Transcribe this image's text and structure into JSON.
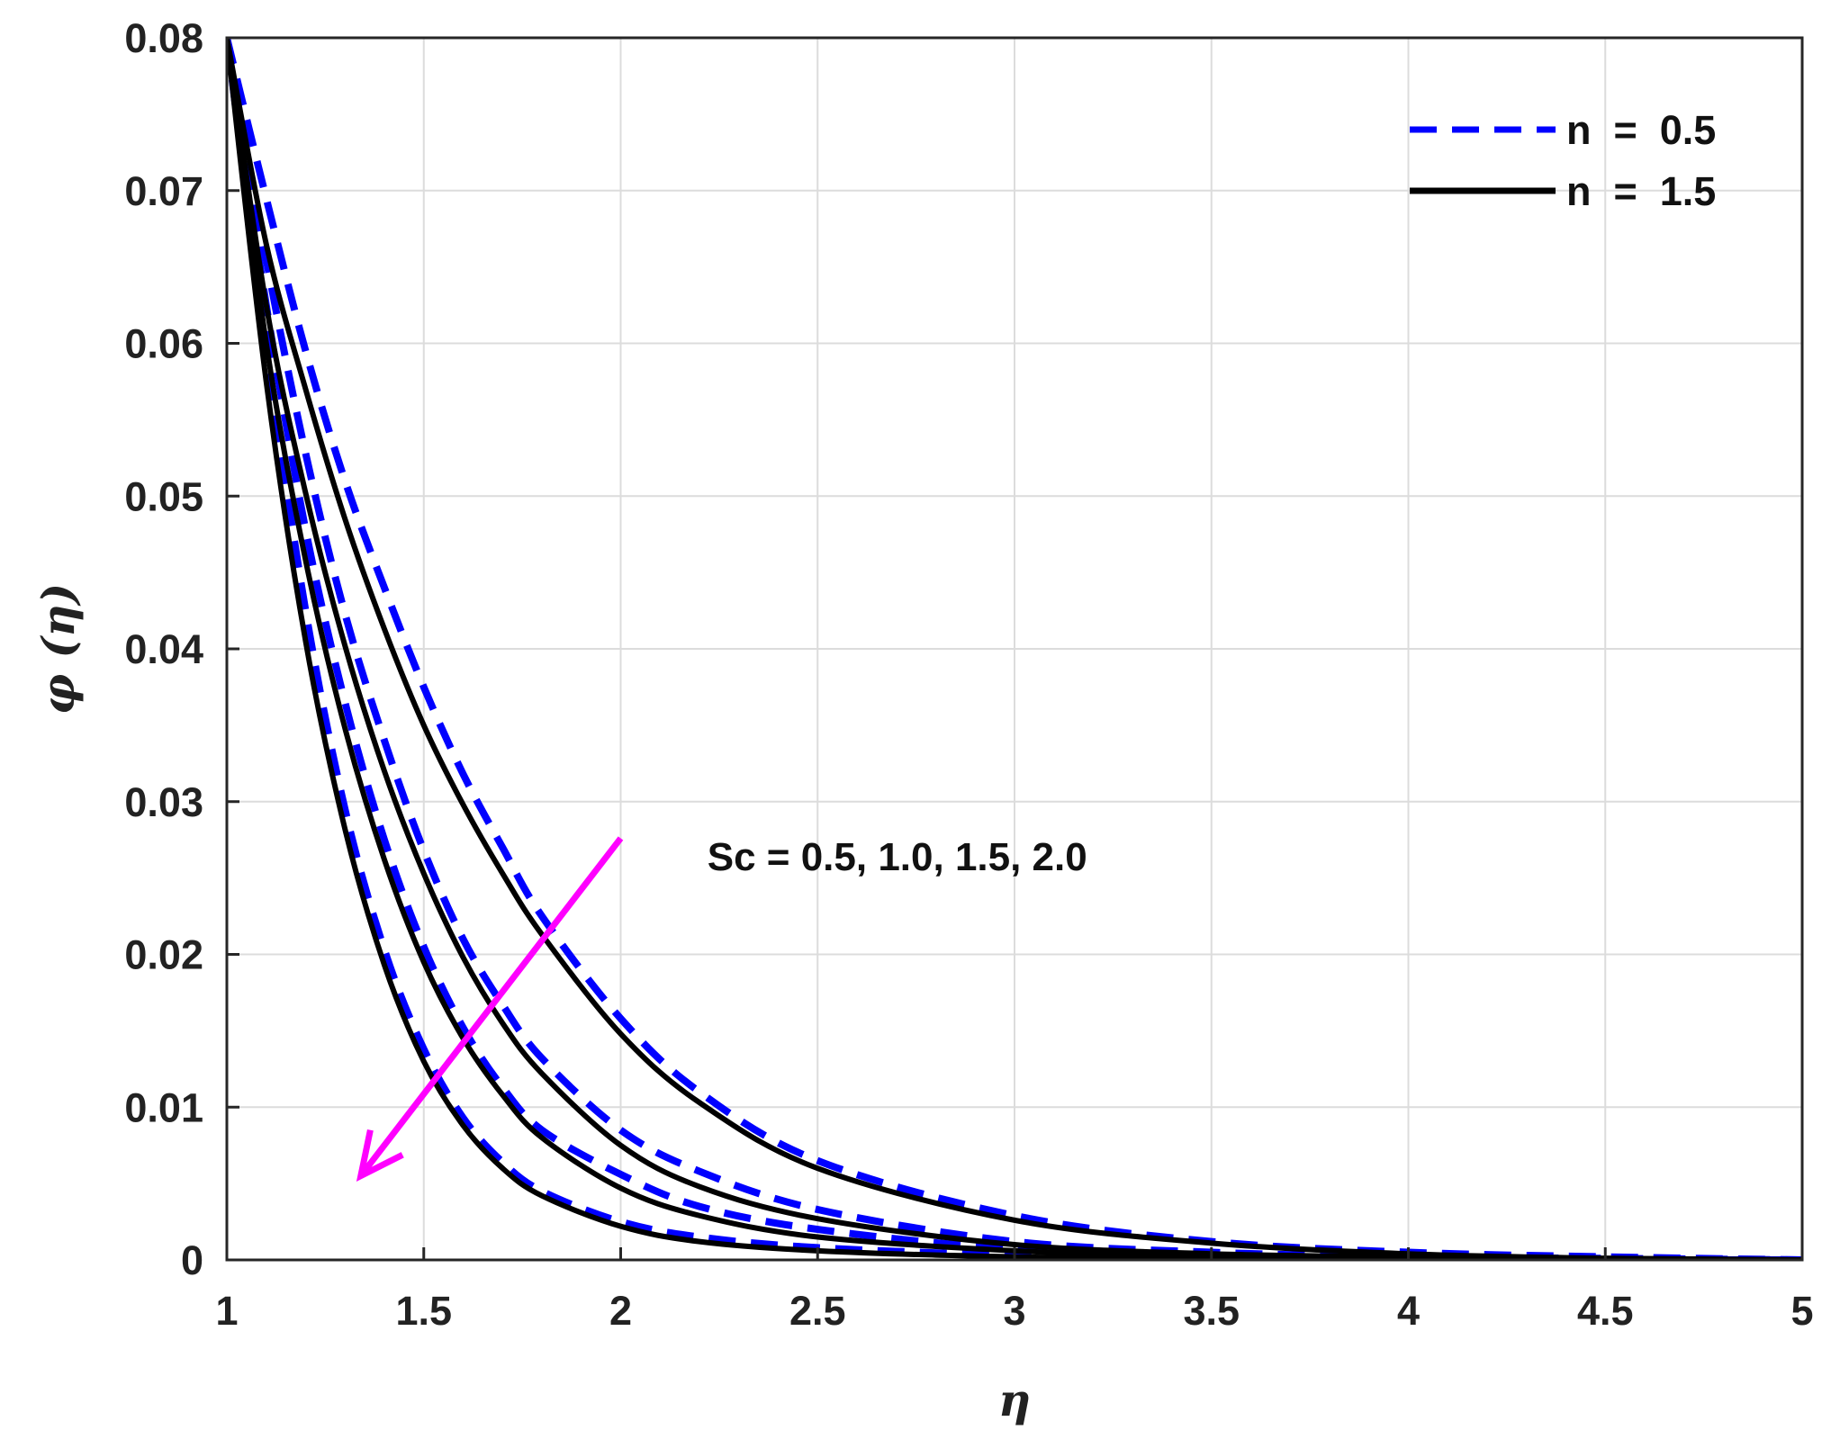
{
  "chart_data": {
    "type": "line",
    "xlabel": "η",
    "ylabel": "φ (η)",
    "xlim": [
      1,
      5
    ],
    "ylim": [
      0,
      0.08
    ],
    "xticks": [
      1,
      1.5,
      2,
      2.5,
      3,
      3.5,
      4,
      4.5,
      5
    ],
    "xtick_labels": [
      "1",
      "1.5",
      "2",
      "2.5",
      "3",
      "3.5",
      "4",
      "4.5",
      "5"
    ],
    "yticks": [
      0,
      0.01,
      0.02,
      0.03,
      0.04,
      0.05,
      0.06,
      0.07,
      0.08
    ],
    "ytick_labels": [
      "0",
      "0.01",
      "0.02",
      "0.03",
      "0.04",
      "0.05",
      "0.06",
      "0.07",
      "0.08"
    ],
    "grid": true,
    "legend_position": "top-right",
    "legend": [
      {
        "label": "n  =  0.5",
        "color": "#0000ff",
        "style": "dashed"
      },
      {
        "label": "n  =  1.5",
        "color": "#000000",
        "style": "solid"
      }
    ],
    "annotation": {
      "text": "Sc = 0.5, 1.0, 1.5, 2.0",
      "arrow_from": [
        2.0,
        0.0276
      ],
      "arrow_to": [
        1.34,
        0.0055
      ],
      "arrow_color": "#ff00ff",
      "text_anchor": [
        2.22,
        0.0255
      ]
    },
    "series": [
      {
        "group": "n = 0.5",
        "Sc": 0.5,
        "color": "#0000ff",
        "style": "dashed",
        "x": [
          1,
          1.1,
          1.2,
          1.3,
          1.4,
          1.5,
          1.6,
          1.7,
          1.8,
          2,
          2.2,
          2.5,
          3,
          3.5,
          4,
          4.5,
          5
        ],
        "y": [
          0.08,
          0.0695,
          0.0595,
          0.051,
          0.044,
          0.0375,
          0.0318,
          0.027,
          0.0225,
          0.0158,
          0.011,
          0.0065,
          0.0029,
          0.0012,
          0.0005,
          0.0002,
          0.0
        ]
      },
      {
        "group": "n = 0.5",
        "Sc": 1.0,
        "color": "#0000ff",
        "style": "dashed",
        "x": [
          1,
          1.1,
          1.2,
          1.3,
          1.4,
          1.5,
          1.6,
          1.7,
          1.8,
          2,
          2.2,
          2.5,
          3,
          3.5,
          4,
          4.5,
          5
        ],
        "y": [
          0.08,
          0.0655,
          0.0528,
          0.0423,
          0.034,
          0.0268,
          0.021,
          0.0167,
          0.0132,
          0.0085,
          0.0058,
          0.0033,
          0.0012,
          0.0005,
          0.0002,
          0.0001,
          0.0
        ]
      },
      {
        "group": "n = 0.5",
        "Sc": 1.5,
        "color": "#0000ff",
        "style": "dashed",
        "x": [
          1,
          1.1,
          1.2,
          1.3,
          1.4,
          1.5,
          1.6,
          1.7,
          1.8,
          2,
          2.2,
          2.5,
          3,
          3.5,
          4,
          4.5,
          5
        ],
        "y": [
          0.08,
          0.0625,
          0.0478,
          0.0365,
          0.0275,
          0.0205,
          0.0152,
          0.0113,
          0.0085,
          0.0056,
          0.0035,
          0.002,
          0.0007,
          0.0003,
          0.0001,
          0.0,
          0.0
        ]
      },
      {
        "group": "n = 0.5",
        "Sc": 2.0,
        "color": "#0000ff",
        "style": "dashed",
        "x": [
          1,
          1.1,
          1.2,
          1.3,
          1.4,
          1.5,
          1.6,
          1.7,
          1.8,
          2,
          2.2,
          2.5,
          3,
          3.5,
          4,
          4.5,
          5
        ],
        "y": [
          0.08,
          0.06,
          0.0425,
          0.0295,
          0.0203,
          0.0138,
          0.0093,
          0.0064,
          0.0045,
          0.0025,
          0.0015,
          0.0008,
          0.0003,
          0.0001,
          0.0,
          0.0,
          0.0
        ]
      },
      {
        "group": "n = 1.5",
        "Sc": 0.5,
        "color": "#000000",
        "style": "solid",
        "x": [
          1,
          1.1,
          1.2,
          1.3,
          1.4,
          1.5,
          1.6,
          1.7,
          1.8,
          2,
          2.2,
          2.5,
          3,
          3.5,
          4,
          4.5,
          5
        ],
        "y": [
          0.08,
          0.0665,
          0.057,
          0.0485,
          0.0413,
          0.035,
          0.0298,
          0.0253,
          0.0213,
          0.0148,
          0.0103,
          0.006,
          0.0026,
          0.0011,
          0.0004,
          0.0001,
          0.0
        ]
      },
      {
        "group": "n = 1.5",
        "Sc": 1.0,
        "color": "#000000",
        "style": "solid",
        "x": [
          1,
          1.1,
          1.2,
          1.3,
          1.4,
          1.5,
          1.6,
          1.7,
          1.8,
          2,
          2.2,
          2.5,
          3,
          3.5,
          4,
          4.5,
          5
        ],
        "y": [
          0.08,
          0.0625,
          0.0502,
          0.0402,
          0.032,
          0.0253,
          0.0198,
          0.0155,
          0.0122,
          0.0075,
          0.0048,
          0.0027,
          0.001,
          0.0004,
          0.0002,
          0.0001,
          0.0
        ]
      },
      {
        "group": "n = 1.5",
        "Sc": 1.5,
        "color": "#000000",
        "style": "solid",
        "x": [
          1,
          1.1,
          1.2,
          1.3,
          1.4,
          1.5,
          1.6,
          1.7,
          1.8,
          2,
          2.2,
          2.5,
          3,
          3.5,
          4,
          4.5,
          5
        ],
        "y": [
          0.08,
          0.06,
          0.0458,
          0.0348,
          0.0262,
          0.0195,
          0.0145,
          0.0108,
          0.008,
          0.0047,
          0.0029,
          0.0015,
          0.0006,
          0.0002,
          0.0001,
          0.0,
          0.0
        ]
      },
      {
        "group": "n = 1.5",
        "Sc": 2.0,
        "color": "#000000",
        "style": "solid",
        "x": [
          1,
          1.1,
          1.2,
          1.3,
          1.4,
          1.5,
          1.6,
          1.7,
          1.8,
          2,
          2.2,
          2.5,
          3,
          3.5,
          4,
          4.5,
          5
        ],
        "y": [
          0.08,
          0.0575,
          0.0405,
          0.0282,
          0.0193,
          0.013,
          0.0088,
          0.006,
          0.0042,
          0.0022,
          0.0012,
          0.0006,
          0.0002,
          0.0001,
          0.0,
          0.0,
          0.0
        ]
      }
    ]
  }
}
